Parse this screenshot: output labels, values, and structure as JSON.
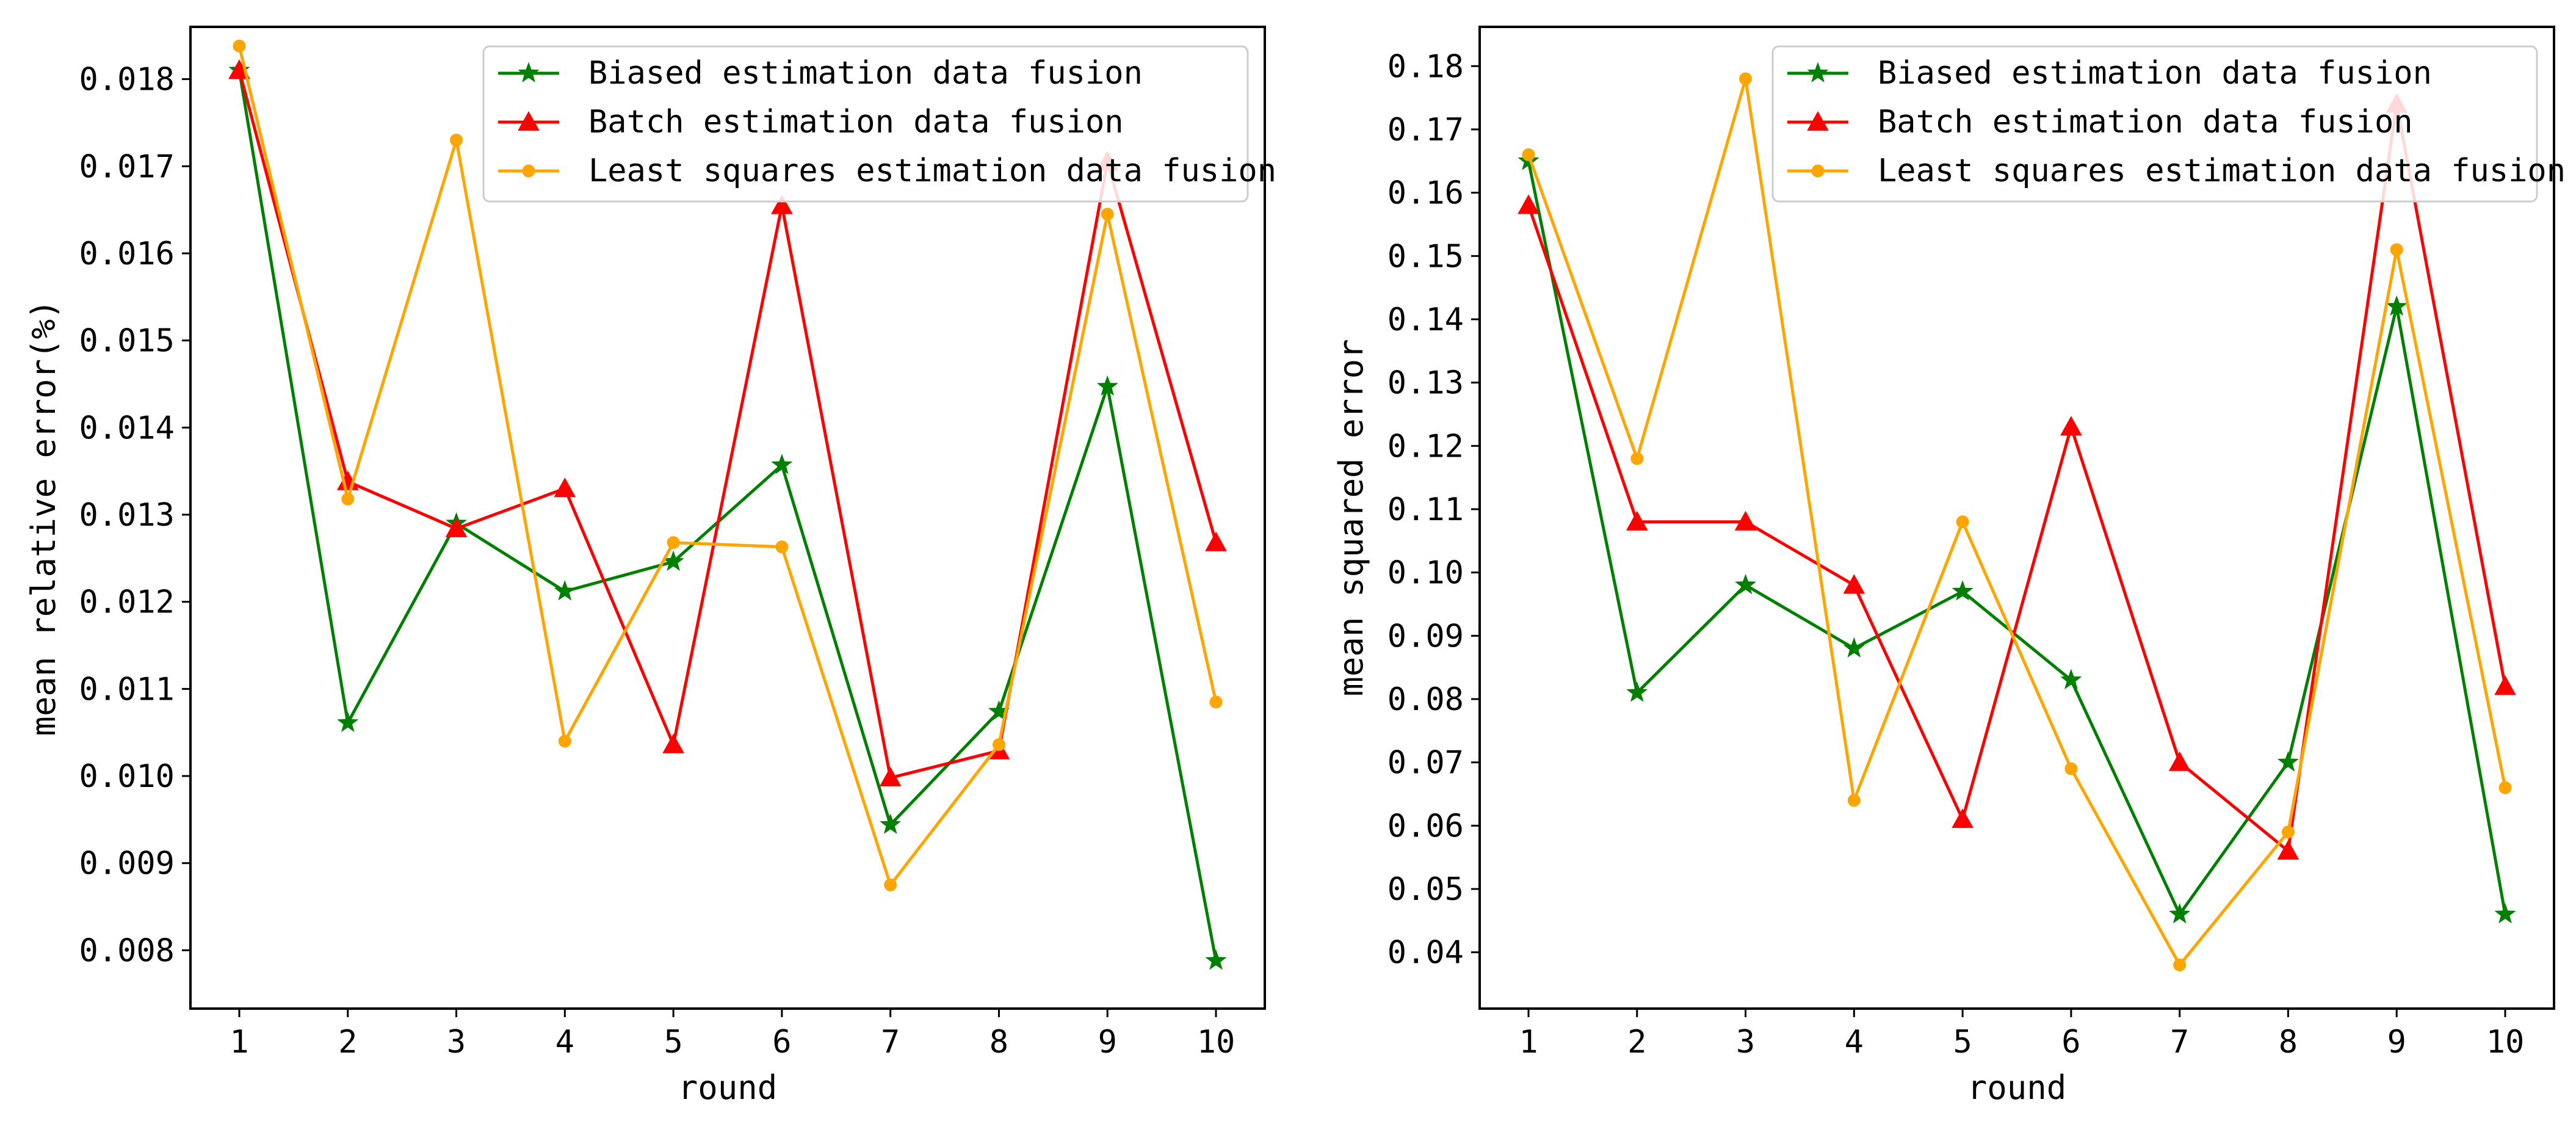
{
  "chart_data": [
    {
      "type": "line",
      "title": "",
      "xlabel": "round",
      "ylabel": "mean relative error(%)",
      "x": [
        1,
        2,
        3,
        4,
        5,
        6,
        7,
        8,
        9,
        10
      ],
      "xlim": [
        0.55,
        10.45
      ],
      "ylim": [
        0.00733,
        0.0186
      ],
      "yticks": [
        0.008,
        0.009,
        0.01,
        0.011,
        0.012,
        0.013,
        0.014,
        0.015,
        0.016,
        0.017,
        0.018
      ],
      "ytick_labels": [
        "0.008",
        "0.009",
        "0.010",
        "0.011",
        "0.012",
        "0.013",
        "0.014",
        "0.015",
        "0.016",
        "0.017",
        "0.018"
      ],
      "xtick_labels": [
        "1",
        "2",
        "3",
        "4",
        "5",
        "6",
        "7",
        "8",
        "9",
        "10"
      ],
      "legend": "top-right",
      "series": [
        {
          "name": "Biased estimation data fusion",
          "color": "#008000",
          "marker": "star",
          "values": [
            0.0181,
            0.01061,
            0.0129,
            0.01212,
            0.01246,
            0.01357,
            0.00944,
            0.01074,
            0.01447,
            0.00788
          ]
        },
        {
          "name": "Batch estimation data fusion",
          "color": "#ff0000",
          "marker": "triangle",
          "values": [
            0.0181,
            0.01338,
            0.01284,
            0.0133,
            0.01036,
            0.01655,
            0.00998,
            0.01029,
            0.01705,
            0.01268
          ]
        },
        {
          "name": "Least squares estimation data fusion",
          "color": "#ffa500",
          "marker": "circle",
          "values": [
            0.01838,
            0.01318,
            0.0173,
            0.0104,
            0.01268,
            0.01263,
            0.00875,
            0.01036,
            0.01645,
            0.01085
          ]
        }
      ]
    },
    {
      "type": "line",
      "title": "",
      "xlabel": "round",
      "ylabel": "mean squared error",
      "x": [
        1,
        2,
        3,
        4,
        5,
        6,
        7,
        8,
        9,
        10
      ],
      "xlim": [
        0.55,
        10.45
      ],
      "ylim": [
        0.0311,
        0.1862
      ],
      "yticks": [
        0.04,
        0.05,
        0.06,
        0.07,
        0.08,
        0.09,
        0.1,
        0.11,
        0.12,
        0.13,
        0.14,
        0.15,
        0.16,
        0.17,
        0.18
      ],
      "ytick_labels": [
        "0.04",
        "0.05",
        "0.06",
        "0.07",
        "0.08",
        "0.09",
        "0.10",
        "0.11",
        "0.12",
        "0.13",
        "0.14",
        "0.15",
        "0.16",
        "0.17",
        "0.18"
      ],
      "xtick_labels": [
        "1",
        "2",
        "3",
        "4",
        "5",
        "6",
        "7",
        "8",
        "9",
        "10"
      ],
      "legend": "top-right",
      "series": [
        {
          "name": "Biased estimation data fusion",
          "color": "#008000",
          "marker": "star",
          "values": [
            0.165,
            0.081,
            0.098,
            0.088,
            0.097,
            0.083,
            0.046,
            0.07,
            0.142,
            0.046
          ]
        },
        {
          "name": "Batch estimation data fusion",
          "color": "#ff0000",
          "marker": "triangle",
          "values": [
            0.158,
            0.108,
            0.108,
            0.098,
            0.061,
            0.123,
            0.07,
            0.056,
            0.174,
            0.082
          ]
        },
        {
          "name": "Least squares estimation data fusion",
          "color": "#ffa500",
          "marker": "circle",
          "values": [
            0.166,
            0.118,
            0.178,
            0.064,
            0.108,
            0.069,
            0.038,
            0.059,
            0.151,
            0.066
          ]
        }
      ]
    }
  ]
}
